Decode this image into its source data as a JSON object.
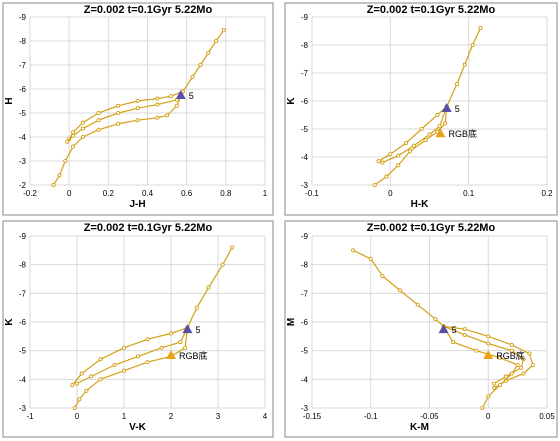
{
  "chart_data": [
    {
      "type": "scatter",
      "title": "Z=0.002  t=0.1Gyr 5.22Mo",
      "xlabel": "J-H",
      "ylabel": "H",
      "xlim": [
        -0.2,
        1.0
      ],
      "ylim": [
        -2,
        -9
      ],
      "xticks": [
        -0.2,
        0,
        0.2,
        0.4,
        0.6,
        0.8,
        1
      ],
      "yticks": [
        -2,
        -3,
        -4,
        -5,
        -6,
        -7,
        -8,
        -9
      ],
      "grid": true,
      "line_color": "#d4a017",
      "series": [
        {
          "values": [
            [
              0.79,
              -8.45
            ],
            [
              0.75,
              -8.0
            ],
            [
              0.71,
              -7.5
            ],
            [
              0.67,
              -7.0
            ],
            [
              0.63,
              -6.5
            ],
            [
              0.58,
              -5.9
            ],
            [
              0.52,
              -5.7
            ],
            [
              0.45,
              -5.6
            ],
            [
              0.35,
              -5.5
            ],
            [
              0.25,
              -5.3
            ],
            [
              0.15,
              -5.0
            ],
            [
              0.07,
              -4.6
            ],
            [
              0.02,
              -4.2
            ],
            [
              0.0,
              -3.9
            ]
          ]
        },
        {
          "values": [
            [
              0.58,
              -5.9
            ],
            [
              0.55,
              -5.55
            ],
            [
              0.45,
              -5.35
            ],
            [
              0.35,
              -5.2
            ],
            [
              0.25,
              -5.0
            ],
            [
              0.15,
              -4.7
            ],
            [
              0.07,
              -4.35
            ],
            [
              0.02,
              -4.05
            ],
            [
              -0.01,
              -3.8
            ]
          ]
        },
        {
          "values": [
            [
              0.58,
              -5.9
            ],
            [
              0.55,
              -5.3
            ],
            [
              0.5,
              -4.9
            ],
            [
              0.45,
              -4.8
            ],
            [
              0.35,
              -4.7
            ],
            [
              0.25,
              -4.55
            ],
            [
              0.15,
              -4.3
            ],
            [
              0.07,
              -4.0
            ],
            [
              0.02,
              -3.6
            ],
            [
              -0.02,
              -3.0
            ],
            [
              -0.05,
              -2.4
            ],
            [
              -0.08,
              -2.0
            ]
          ]
        }
      ],
      "markers": [
        {
          "x": 0.57,
          "y": -5.75,
          "shape": "triangle",
          "color": "#5b4ea8",
          "label": "5"
        }
      ]
    },
    {
      "type": "scatter",
      "title": "Z=0.002  t=0.1Gyr 5.22Mo",
      "xlabel": "H-K",
      "ylabel": "K",
      "xlim": [
        -0.1,
        0.2
      ],
      "ylim": [
        -3,
        -9
      ],
      "xticks": [
        -0.1,
        0,
        0.1,
        0.2
      ],
      "yticks": [
        -3,
        -4,
        -5,
        -6,
        -7,
        -8,
        -9
      ],
      "grid": true,
      "line_color": "#d4a017",
      "series": [
        {
          "values": [
            [
              0.115,
              -8.6
            ],
            [
              0.105,
              -8.0
            ],
            [
              0.095,
              -7.3
            ],
            [
              0.085,
              -6.6
            ],
            [
              0.072,
              -5.8
            ],
            [
              0.06,
              -5.5
            ],
            [
              0.04,
              -5.0
            ],
            [
              0.02,
              -4.5
            ],
            [
              0.0,
              -4.1
            ],
            [
              -0.015,
              -3.85
            ]
          ]
        },
        {
          "values": [
            [
              0.072,
              -5.8
            ],
            [
              0.063,
              -5.1
            ],
            [
              0.05,
              -4.8
            ],
            [
              0.03,
              -4.4
            ],
            [
              0.01,
              -4.05
            ],
            [
              -0.01,
              -3.8
            ]
          ]
        },
        {
          "values": [
            [
              0.072,
              -5.8
            ],
            [
              0.07,
              -5.2
            ],
            [
              0.06,
              -4.9
            ],
            [
              0.045,
              -4.6
            ],
            [
              0.025,
              -4.2
            ],
            [
              0.01,
              -3.7
            ],
            [
              -0.005,
              -3.3
            ],
            [
              -0.02,
              -3.0
            ]
          ]
        }
      ],
      "markers": [
        {
          "x": 0.072,
          "y": -5.75,
          "shape": "triangle",
          "color": "#5b4ea8",
          "label": "5"
        },
        {
          "x": 0.064,
          "y": -4.85,
          "shape": "triangle",
          "color": "#e8a317",
          "label": "RGB底"
        }
      ]
    },
    {
      "type": "scatter",
      "title": "Z=0.002  t=0.1Gyr 5.22Mo",
      "xlabel": "V-K",
      "ylabel": "K",
      "xlim": [
        -1,
        4
      ],
      "ylim": [
        -3,
        -9
      ],
      "xticks": [
        -1,
        0,
        1,
        2,
        3,
        4
      ],
      "yticks": [
        -3,
        -4,
        -5,
        -6,
        -7,
        -8,
        -9
      ],
      "grid": true,
      "line_color": "#d4a017",
      "series": [
        {
          "values": [
            [
              3.3,
              -8.6
            ],
            [
              3.1,
              -8.0
            ],
            [
              2.8,
              -7.2
            ],
            [
              2.55,
              -6.5
            ],
            [
              2.35,
              -5.8
            ],
            [
              2.0,
              -5.6
            ],
            [
              1.5,
              -5.4
            ],
            [
              1.0,
              -5.1
            ],
            [
              0.5,
              -4.7
            ],
            [
              0.1,
              -4.2
            ],
            [
              -0.1,
              -3.8
            ]
          ]
        },
        {
          "values": [
            [
              2.35,
              -5.8
            ],
            [
              2.2,
              -5.3
            ],
            [
              1.8,
              -5.1
            ],
            [
              1.3,
              -4.8
            ],
            [
              0.8,
              -4.5
            ],
            [
              0.3,
              -4.1
            ],
            [
              0.0,
              -3.85
            ]
          ]
        },
        {
          "values": [
            [
              2.35,
              -5.8
            ],
            [
              2.3,
              -5.1
            ],
            [
              2.0,
              -4.8
            ],
            [
              1.5,
              -4.6
            ],
            [
              1.0,
              -4.3
            ],
            [
              0.5,
              -4.0
            ],
            [
              0.2,
              -3.6
            ],
            [
              0.05,
              -3.3
            ],
            [
              -0.05,
              -3.0
            ]
          ]
        }
      ],
      "markers": [
        {
          "x": 2.35,
          "y": -5.75,
          "shape": "triangle",
          "color": "#5b4ea8",
          "label": "5"
        },
        {
          "x": 2.0,
          "y": -4.85,
          "shape": "triangle",
          "color": "#e8a317",
          "label": "RGB底"
        }
      ]
    },
    {
      "type": "scatter",
      "title": "Z=0.002  t=0.1Gyr 5.22Mo",
      "xlabel": "K-M",
      "ylabel": "M",
      "xlim": [
        -0.15,
        0.05
      ],
      "ylim": [
        -3,
        -9
      ],
      "xticks": [
        -0.15,
        -0.1,
        -0.05,
        0,
        0.05
      ],
      "yticks": [
        -3,
        -4,
        -5,
        -6,
        -7,
        -8,
        -9
      ],
      "grid": true,
      "line_color": "#d4a017",
      "series": [
        {
          "values": [
            [
              -0.115,
              -8.5
            ],
            [
              -0.1,
              -8.2
            ],
            [
              -0.09,
              -7.6
            ],
            [
              -0.075,
              -7.1
            ],
            [
              -0.06,
              -6.6
            ],
            [
              -0.045,
              -6.1
            ],
            [
              -0.038,
              -5.85
            ],
            [
              -0.02,
              -5.75
            ],
            [
              0.0,
              -5.5
            ],
            [
              0.02,
              -5.2
            ],
            [
              0.035,
              -4.9
            ],
            [
              0.038,
              -4.5
            ],
            [
              0.03,
              -4.2
            ],
            [
              0.015,
              -3.95
            ],
            [
              0.005,
              -3.7
            ]
          ]
        },
        {
          "values": [
            [
              -0.038,
              -5.85
            ],
            [
              -0.02,
              -5.55
            ],
            [
              0.0,
              -5.25
            ],
            [
              0.02,
              -5.0
            ],
            [
              0.03,
              -4.7
            ],
            [
              0.028,
              -4.4
            ],
            [
              0.015,
              -4.1
            ],
            [
              0.005,
              -3.85
            ]
          ]
        },
        {
          "values": [
            [
              -0.038,
              -5.85
            ],
            [
              -0.03,
              -5.3
            ],
            [
              -0.01,
              -5.0
            ],
            [
              0.01,
              -4.75
            ],
            [
              0.025,
              -4.5
            ],
            [
              0.02,
              -4.2
            ],
            [
              0.01,
              -3.8
            ],
            [
              0.0,
              -3.4
            ],
            [
              -0.005,
              -3.0
            ]
          ]
        }
      ],
      "markers": [
        {
          "x": -0.038,
          "y": -5.75,
          "shape": "triangle",
          "color": "#5b4ea8",
          "label": "5"
        },
        {
          "x": 0.0,
          "y": -4.85,
          "shape": "triangle",
          "color": "#e8a317",
          "label": "RGB底"
        }
      ]
    }
  ]
}
